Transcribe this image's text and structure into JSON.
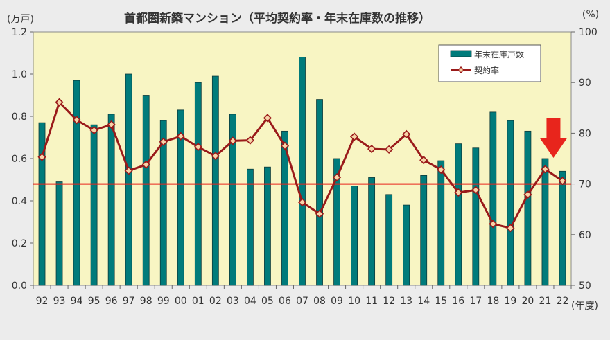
{
  "chart_data": {
    "type": "bar+line",
    "title": "首都圏新築マンション（平均契約率・年末在庫数の推移）",
    "left_unit": "(万戸)",
    "right_unit": "(%)",
    "x_unit": "(年度)",
    "categories": [
      "92",
      "93",
      "94",
      "95",
      "96",
      "97",
      "98",
      "99",
      "00",
      "01",
      "02",
      "03",
      "04",
      "05",
      "06",
      "07",
      "08",
      "09",
      "10",
      "11",
      "12",
      "13",
      "14",
      "15",
      "16",
      "17",
      "18",
      "19",
      "20",
      "21",
      "22"
    ],
    "left_axis": {
      "min": 0,
      "max": 1.2,
      "ticks": [
        "0.0",
        "0.2",
        "0.4",
        "0.6",
        "0.8",
        "1.0",
        "1.2"
      ]
    },
    "right_axis": {
      "min": 50,
      "max": 100,
      "ticks": [
        "50",
        "60",
        "70",
        "80",
        "90",
        "100"
      ]
    },
    "series": [
      {
        "name": "年末在庫戸数",
        "kind": "bar",
        "axis": "left",
        "color": "#007b7b",
        "values": [
          0.77,
          0.49,
          0.97,
          0.76,
          0.81,
          1.0,
          0.9,
          0.78,
          0.83,
          0.96,
          0.99,
          0.81,
          0.55,
          0.56,
          0.73,
          1.08,
          0.88,
          0.6,
          0.47,
          0.51,
          0.43,
          0.38,
          0.52,
          0.59,
          0.67,
          0.65,
          0.82,
          0.78,
          0.73,
          0.6,
          0.54
        ]
      },
      {
        "name": "契約率",
        "kind": "line",
        "axis": "right",
        "color": "#9a1a1a",
        "marker_fill": "#f7d4a8",
        "values": [
          75.3,
          86.1,
          82.6,
          80.6,
          81.7,
          72.6,
          73.8,
          78.3,
          79.4,
          77.3,
          75.5,
          78.5,
          78.6,
          83.0,
          77.5,
          66.4,
          64.1,
          71.3,
          79.3,
          76.9,
          76.8,
          79.8,
          74.7,
          72.8,
          68.3,
          68.8,
          62.1,
          61.3,
          67.9,
          72.9,
          70.6
        ]
      }
    ],
    "reference_line": {
      "axis": "right",
      "value": 70,
      "color": "#e8251c"
    },
    "legend_placement": "top-right",
    "grid": false,
    "plot_background": "#f8f5c3",
    "annotation": {
      "type": "arrow",
      "color": "#e8251c",
      "target_category": "21"
    }
  }
}
